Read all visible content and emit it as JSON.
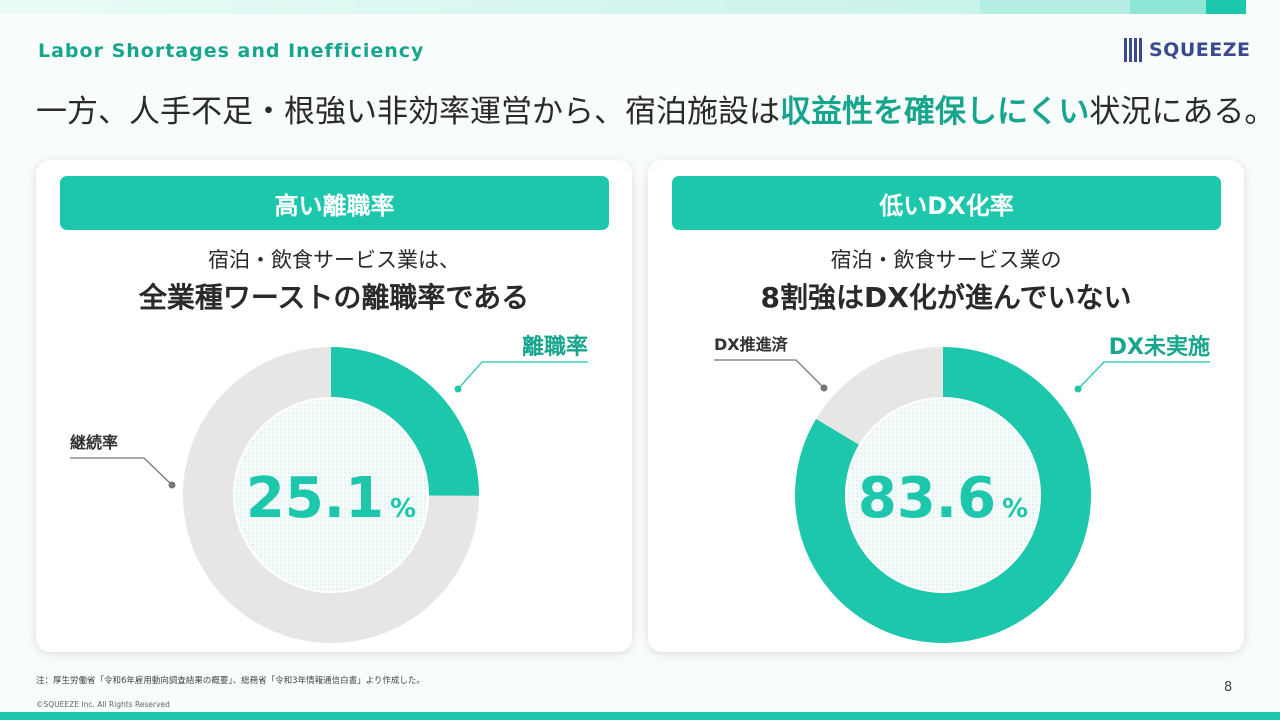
{
  "header": {
    "section_title": "Labor Shortages and Inefficiency",
    "logo_text": "SQUEEZE",
    "headline_pre": "一方、人手不足・根強い非効率運営から、宿泊施設は",
    "headline_highlight": "収益性を確保しにくい",
    "headline_post": "状況にある。"
  },
  "colors": {
    "accent": "#1cc7ac",
    "accent_text": "#18a58d",
    "ring_gray": "#e6e6e6",
    "logo": "#3b4a8f"
  },
  "cards": [
    {
      "header": "高い離職率",
      "sub": "宿泊・飲食サービス業は、",
      "main": "全業種ワーストの離職率である",
      "value_text": "25.1",
      "unit": "%",
      "highlight_label": "離職率",
      "other_label": "継続率"
    },
    {
      "header": "低いDX化率",
      "sub": "宿泊・飲食サービス業の",
      "main": "8割強はDX化が進んでいない",
      "value_text": "83.6",
      "unit": "%",
      "highlight_label": "DX未実施",
      "other_label": "DX推進済"
    }
  ],
  "chart_data": [
    {
      "type": "pie",
      "labels": [
        "離職率",
        "継続率"
      ],
      "values": [
        25.1,
        74.9
      ],
      "colors": [
        "#1cc7ac",
        "#e6e6e6"
      ],
      "center_label": "25.1%"
    },
    {
      "type": "pie",
      "labels": [
        "DX未実施",
        "DX推進済"
      ],
      "values": [
        83.6,
        16.4
      ],
      "colors": [
        "#1cc7ac",
        "#e6e6e6"
      ],
      "center_label": "83.6%"
    }
  ],
  "footer": {
    "note": "注：厚生労働省「令和6年雇用動向調査結果の概要」、総務省「令和3年情報通信白書」より作成した。",
    "copyright": "©SQUEEZE Inc. All Rights Reserved",
    "page": "8"
  }
}
